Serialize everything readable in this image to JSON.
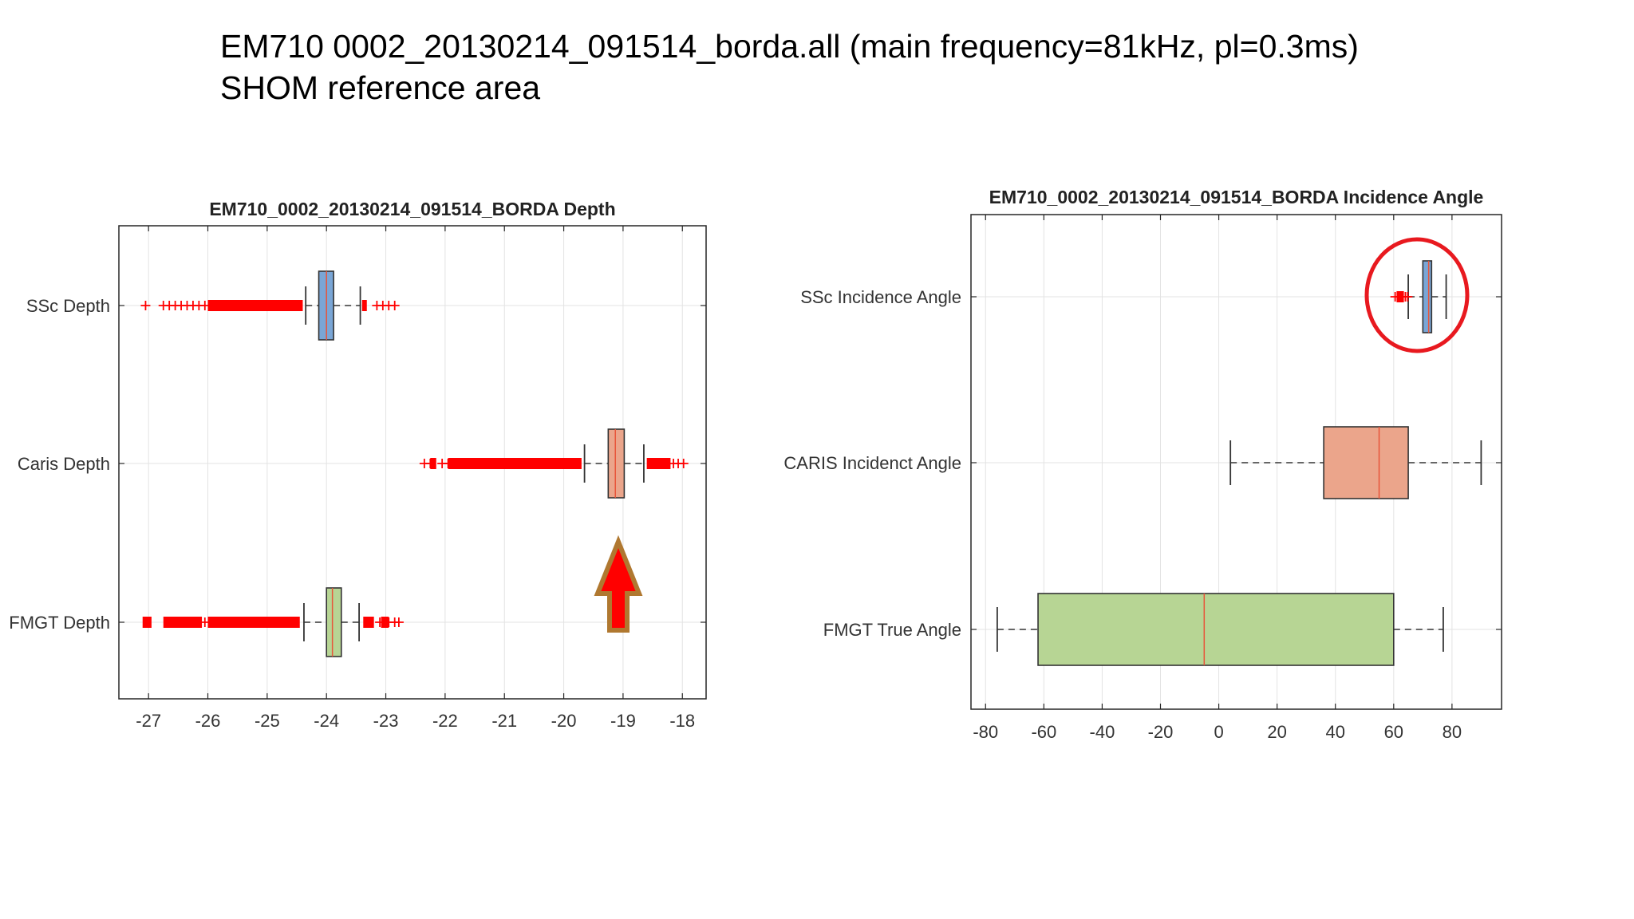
{
  "slide": {
    "title_line1": "EM710 0002_20130214_091514_borda.all (main frequency=81kHz, pl=0.3ms)",
    "title_line2": "SHOM reference area"
  },
  "colors": {
    "ssc_box": "#7aa6d6",
    "caris_box": "#eba58b",
    "fmgt_box": "#b7d594",
    "outlier": "#ff0000",
    "median": "#e8553a",
    "annotation_red": "#e8191f",
    "arrow_outline": "#b07830"
  },
  "annotations": {
    "arrow_icon": "up-arrow-icon",
    "circle_icon": "highlight-circle"
  },
  "chart_data": [
    {
      "type": "boxplot",
      "orientation": "horizontal",
      "title": "EM710_0002_20130214_091514_BORDA Depth",
      "xlim": [
        -27.5,
        -17.6
      ],
      "xticks": [
        -27,
        -26,
        -25,
        -24,
        -23,
        -22,
        -21,
        -20,
        -19,
        -18
      ],
      "grid": true,
      "categories": [
        "SSc Depth",
        "Caris Depth",
        "FMGT Depth"
      ],
      "series": [
        {
          "name": "SSc Depth",
          "color": "#7aa6d6",
          "whisker_low": -24.35,
          "q1": -24.13,
          "median": -24.0,
          "q3": -23.88,
          "whisker_high": -23.43,
          "outliers_low_range": [
            -27.05,
            -24.4
          ],
          "outliers_high_range": [
            -23.35,
            -22.78
          ],
          "outliers_sparse": [
            -27.05,
            -26.75,
            -26.65,
            -26.55,
            -26.45,
            -26.35,
            -26.25,
            -26.15,
            -26.05,
            -23.15,
            -23.05,
            -22.95,
            -22.85
          ],
          "outliers_dense": [
            [
              -26.0,
              -24.4
            ],
            [
              -23.4,
              -23.32
            ]
          ]
        },
        {
          "name": "Caris Depth",
          "color": "#eba58b",
          "whisker_low": -19.65,
          "q1": -19.25,
          "median": -19.13,
          "q3": -18.98,
          "whisker_high": -18.65,
          "outliers_sparse": [
            -22.35,
            -22.25,
            -22.05,
            -21.95,
            -21.8,
            -21.6,
            -21.45,
            -18.15,
            -18.07,
            -17.98
          ],
          "outliers_dense": [
            [
              -22.25,
              -22.15
            ],
            [
              -21.95,
              -19.7
            ],
            [
              -18.6,
              -18.2
            ]
          ]
        },
        {
          "name": "FMGT Depth",
          "color": "#b7d594",
          "whisker_low": -24.38,
          "q1": -24.0,
          "median": -23.9,
          "q3": -23.75,
          "whisker_high": -23.45,
          "outliers_sparse": [
            -26.05,
            -25.85,
            -25.7,
            -23.1,
            -22.95,
            -22.85,
            -22.78
          ],
          "outliers_dense": [
            [
              -27.1,
              -26.95
            ],
            [
              -26.75,
              -26.1
            ],
            [
              -26.0,
              -24.45
            ],
            [
              -23.38,
              -23.2
            ],
            [
              -23.08,
              -22.95
            ]
          ]
        }
      ]
    },
    {
      "type": "boxplot",
      "orientation": "horizontal",
      "title": "EM710_0002_20130214_091514_BORDA Incidence Angle",
      "xlim": [
        -85,
        97
      ],
      "xticks": [
        -80,
        -60,
        -40,
        -20,
        0,
        20,
        40,
        60,
        80
      ],
      "grid": true,
      "categories": [
        "SSc Incidence Angle",
        "CARIS Incidenct Angle",
        "FMGT True Angle"
      ],
      "series": [
        {
          "name": "SSc Incidence Angle",
          "color": "#7aa6d6",
          "whisker_low": 65,
          "q1": 70,
          "median": 72,
          "q3": 73,
          "whisker_high": 78,
          "outliers_sparse": [
            60.5,
            62.5,
            64,
            64.8
          ],
          "outliers_dense": [
            [
              61,
              63.5
            ]
          ]
        },
        {
          "name": "CARIS Incidenct Angle",
          "color": "#eba58b",
          "whisker_low": 4,
          "q1": 36,
          "median": 55,
          "q3": 65,
          "whisker_high": 90,
          "outliers_sparse": [],
          "outliers_dense": []
        },
        {
          "name": "FMGT True Angle",
          "color": "#b7d594",
          "whisker_low": -76,
          "q1": -62,
          "median": -5,
          "q3": 60,
          "whisker_high": 77,
          "outliers_sparse": [],
          "outliers_dense": []
        }
      ]
    }
  ]
}
